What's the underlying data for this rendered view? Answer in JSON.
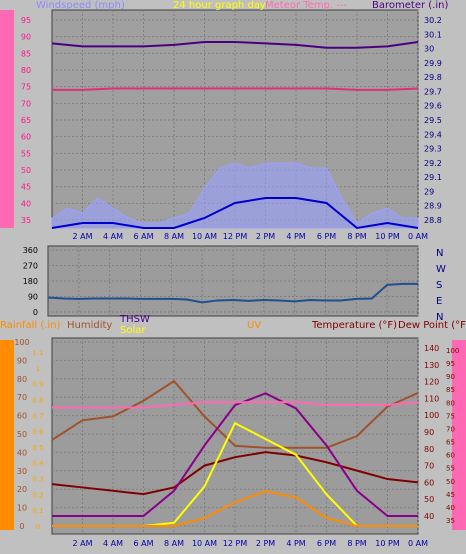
{
  "chart_data": [
    {
      "type": "line",
      "legend": {
        "windspeed": "Windspeed (mph)",
        "graph_day": "24 hour graph day",
        "temp": "Meteor Temp.  ---",
        "barometer": "Barometer (.in)"
      },
      "x_ticks": [
        "2 AM",
        "4 AM",
        "6 AM",
        "8 AM",
        "10 AM",
        "12 PM",
        "2 PM",
        "4 PM",
        "6 PM",
        "8 PM",
        "10 PM",
        "0 AM"
      ],
      "left_axis": {
        "ticks": [
          "95",
          "90",
          "85",
          "80",
          "75",
          "70",
          "65",
          "60",
          "55",
          "50",
          "45",
          "40",
          "35"
        ],
        "range": [
          30,
          97
        ]
      },
      "right_axis": {
        "ticks": [
          "30.2",
          "30.1",
          "30",
          "29.9",
          "29.8",
          "29.7",
          "29.6",
          "29.5",
          "29.4",
          "29.3",
          "29.2",
          "29.1",
          "29",
          "28.9",
          "28.8"
        ],
        "range": [
          28.75,
          30.25
        ]
      },
      "series": [
        {
          "name": "Barometer",
          "color": "#4b0082",
          "x": [
            0,
            2,
            4,
            6,
            8,
            10,
            12,
            14,
            16,
            18,
            20,
            22,
            24
          ],
          "y": [
            30.02,
            30.0,
            30.0,
            30.0,
            30.01,
            30.03,
            30.03,
            30.02,
            30.01,
            29.99,
            29.99,
            30.0,
            30.03
          ]
        },
        {
          "name": "Temp",
          "color": "#e0307a",
          "x": [
            0,
            2,
            4,
            6,
            8,
            10,
            12,
            14,
            16,
            18,
            20,
            22,
            24
          ],
          "y": [
            29.7,
            29.7,
            29.71,
            29.71,
            29.71,
            29.71,
            29.71,
            29.71,
            29.71,
            29.71,
            29.7,
            29.7,
            29.71
          ]
        },
        {
          "name": "Windspeed",
          "color": "#9aa0ff",
          "x": [
            0,
            1,
            2,
            3,
            4,
            5,
            6,
            7,
            8,
            9,
            10,
            11,
            12,
            13,
            14,
            15,
            16,
            17,
            18,
            19,
            20,
            21,
            22,
            23,
            24
          ],
          "y": [
            2,
            4,
            3,
            6,
            4,
            2,
            1,
            1,
            2,
            3,
            8,
            12,
            13,
            12,
            13,
            13,
            13,
            12,
            12,
            6,
            1,
            3,
            4,
            2,
            2
          ]
        },
        {
          "name": "Gust",
          "color": "#0000cc",
          "x": [
            0,
            2,
            4,
            6,
            8,
            10,
            12,
            14,
            16,
            18,
            20,
            22,
            24
          ],
          "y": [
            0,
            1,
            1,
            0,
            0,
            2,
            5,
            6,
            6,
            5,
            0,
            1,
            0
          ]
        }
      ]
    },
    {
      "type": "line",
      "right_labels": [
        "N",
        "W",
        "S",
        "E",
        "N"
      ],
      "left_ticks": [
        "360",
        "270",
        "180",
        "90",
        "0"
      ],
      "range": [
        0,
        360
      ],
      "series": [
        {
          "name": "Wind Direction",
          "color": "#1f4f8f",
          "x": [
            0,
            1,
            2,
            3,
            4,
            5,
            6,
            7,
            8,
            9,
            10,
            11,
            12,
            13,
            14,
            15,
            16,
            17,
            18,
            19,
            20,
            21,
            22,
            23,
            24
          ],
          "y": [
            95,
            90,
            88,
            90,
            90,
            90,
            88,
            88,
            88,
            85,
            70,
            80,
            82,
            78,
            82,
            80,
            75,
            82,
            80,
            80,
            88,
            90,
            160,
            165,
            165
          ]
        }
      ]
    },
    {
      "type": "line",
      "legend": {
        "rainfall": "Rainfall (.in)",
        "humidity": "Humidity",
        "thsw": "THSW",
        "solar": "Solar",
        "uv": "UV",
        "temperature": "Temperature (°F)",
        "dew_point": "Dew Point (°F)"
      },
      "x_ticks": [
        "2 AM",
        "4 AM",
        "6 AM",
        "8 AM",
        "10 AM",
        "12 PM",
        "2 PM",
        "4 PM",
        "6 PM",
        "8 PM",
        "10 PM",
        "0 AM"
      ],
      "rain_ticks": [
        "1",
        "0.9",
        "0.8",
        "0.7",
        "0.6",
        "0.5",
        "0.4",
        "0.3",
        "0.2",
        "0.1",
        "0"
      ],
      "humidity_ticks": [
        "100",
        "90",
        "80",
        "70",
        "60",
        "50",
        "40",
        "30",
        "20",
        "10",
        "0"
      ],
      "solar_ticks": [
        "1.1",
        "1",
        "0.9",
        "0.8",
        "0.7",
        "0.6",
        "0.5",
        "0.4",
        "0.3",
        "0.2",
        "0.1",
        "0"
      ],
      "temp_ticks": [
        "140",
        "130",
        "120",
        "110",
        "100",
        "90",
        "80",
        "70",
        "60",
        "50",
        "40"
      ],
      "dew_ticks": [
        "100",
        "95",
        "90",
        "85",
        "80",
        "75",
        "70",
        "65",
        "60",
        "55",
        "50",
        "45",
        "40",
        "35"
      ],
      "series": [
        {
          "name": "Humidity",
          "color": "#a0522d",
          "x": [
            0,
            2,
            4,
            6,
            8,
            10,
            12,
            14,
            16,
            18,
            20,
            22,
            24
          ],
          "y": [
            48,
            58,
            60,
            68,
            78,
            60,
            45,
            44,
            44,
            44,
            50,
            65,
            72
          ]
        },
        {
          "name": "Temperature",
          "color": "#800000",
          "x": [
            0,
            2,
            4,
            6,
            8,
            10,
            12,
            14,
            16,
            18,
            20,
            22,
            24
          ],
          "y": [
            59,
            57,
            55,
            53,
            57,
            70,
            75,
            78,
            76,
            72,
            67,
            62,
            60
          ]
        },
        {
          "name": "THSW",
          "color": "#8b008b",
          "x": [
            0,
            2,
            4,
            6,
            8,
            10,
            12,
            14,
            16,
            18,
            20,
            22,
            24
          ],
          "y": [
            40,
            40,
            40,
            40,
            55,
            82,
            106,
            113,
            104,
            82,
            55,
            40,
            40
          ]
        },
        {
          "name": "Solar",
          "color": "#ffff00",
          "x": [
            0,
            2,
            4,
            6,
            8,
            10,
            12,
            14,
            16,
            18,
            20,
            22,
            24
          ],
          "y": [
            0,
            0,
            0,
            0,
            0.02,
            0.25,
            0.65,
            0.55,
            0.45,
            0.2,
            0,
            0,
            0
          ]
        },
        {
          "name": "UV",
          "color": "#ff8c00",
          "x": [
            0,
            2,
            4,
            6,
            8,
            10,
            12,
            14,
            16,
            18,
            20,
            22,
            24
          ],
          "y": [
            0,
            0,
            0,
            0,
            0,
            0.05,
            0.15,
            0.22,
            0.18,
            0.05,
            0,
            0,
            0
          ]
        },
        {
          "name": "Dew Point",
          "color": "#ff69b4",
          "x": [
            0,
            2,
            4,
            6,
            8,
            10,
            12,
            14,
            16,
            18,
            20,
            22,
            24
          ],
          "y": [
            78,
            78,
            78,
            78,
            79,
            80,
            80,
            80,
            80,
            79,
            79,
            79,
            80
          ]
        }
      ]
    }
  ]
}
